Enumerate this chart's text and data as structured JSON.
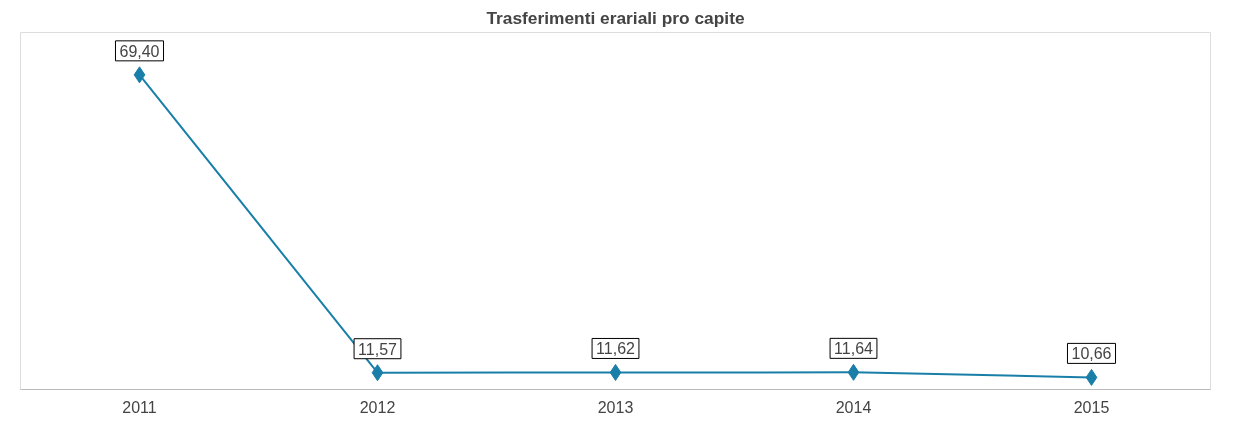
{
  "chart_data": {
    "type": "line",
    "title": "Trasferimenti erariali pro capite",
    "categories": [
      "2011",
      "2012",
      "2013",
      "2014",
      "2015"
    ],
    "series": [
      {
        "color": "#1a7fa8",
        "values": [
          69.4,
          11.57,
          11.62,
          11.64,
          10.66
        ],
        "value_labels": [
          "69,40",
          "11,57",
          "11,62",
          "11,64",
          "10,66"
        ]
      }
    ],
    "marker": "diamond",
    "line_style": "solid"
  }
}
